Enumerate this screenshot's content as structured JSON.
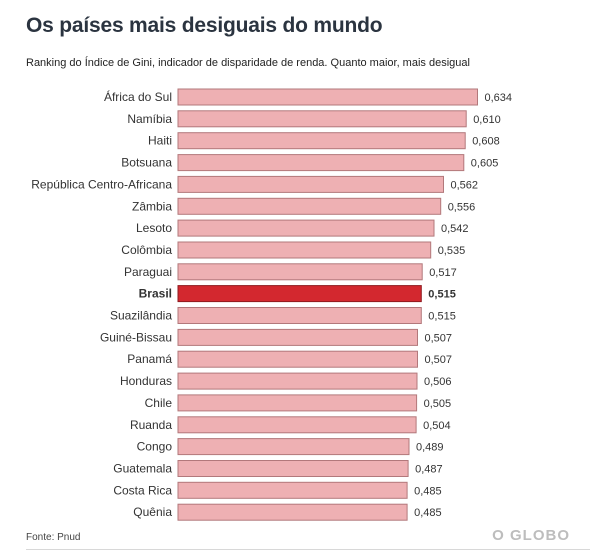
{
  "header": {
    "title": "Os países mais desiguais do mundo",
    "subtitle": "Ranking do Índice de Gini, indicador de disparidade de renda. Quanto maior, mais desigual"
  },
  "footer": {
    "source": "Fonte: Pnud",
    "logo": "O GLOBO"
  },
  "colors": {
    "bar": "#eeb0b3",
    "bar_border": "#b2787b",
    "highlight": "#d3282f",
    "highlight_border": "#8f1a1f"
  },
  "chart_data": {
    "type": "bar",
    "orientation": "horizontal",
    "title": "Os países mais desiguais do mundo",
    "subtitle": "Ranking do Índice de Gini, indicador de disparidade de renda. Quanto maior, mais desigual",
    "categories": [
      "África do Sul",
      "Namíbia",
      "Haiti",
      "Botsuana",
      "República Centro-Africana",
      "Zâmbia",
      "Lesoto",
      "Colômbia",
      "Paraguai",
      "Brasil",
      "Suazilândia",
      "Guiné-Bissau",
      "Panamá",
      "Honduras",
      "Chile",
      "Ruanda",
      "Congo",
      "Guatemala",
      "Costa Rica",
      "Quênia"
    ],
    "values": [
      0.634,
      0.61,
      0.608,
      0.605,
      0.562,
      0.556,
      0.542,
      0.535,
      0.517,
      0.515,
      0.515,
      0.507,
      0.507,
      0.506,
      0.505,
      0.504,
      0.489,
      0.487,
      0.485,
      0.485
    ],
    "value_labels": [
      "0,634",
      "0,610",
      "0,608",
      "0,605",
      "0,562",
      "0,556",
      "0,542",
      "0,535",
      "0,517",
      "0,515",
      "0,515",
      "0,507",
      "0,507",
      "0,506",
      "0,505",
      "0,504",
      "0,489",
      "0,487",
      "0,485",
      "0,485"
    ],
    "highlight": "Brasil",
    "xlabel": "",
    "ylabel": "",
    "grid": false,
    "legend": "none"
  }
}
